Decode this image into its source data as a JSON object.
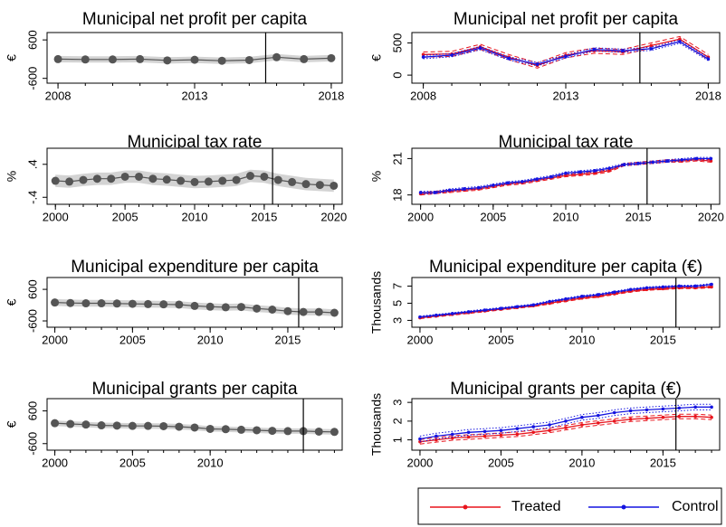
{
  "chart_data": [
    {
      "type": "line",
      "title": "Municipal net profit per capita",
      "y_label": "€",
      "x": [
        2008,
        2009,
        2010,
        2011,
        2012,
        2013,
        2014,
        2015,
        2016,
        2017,
        2018
      ],
      "xlim": [
        2007.6,
        2018.4
      ],
      "xticks": [
        2008,
        2013,
        2018
      ],
      "ylim": [
        -750,
        830
      ],
      "yticks": [
        -600,
        600
      ],
      "reference_line": 2015.6,
      "band_color": "#d3d3d3",
      "series": [
        {
          "color": "#555555",
          "values": [
            0,
            -10,
            -10,
            0,
            -40,
            -20,
            -50,
            -30,
            60,
            0,
            30
          ],
          "lower": [
            -100,
            -110,
            -110,
            -100,
            -140,
            -120,
            -150,
            -130,
            -40,
            -100,
            -70
          ],
          "upper": [
            100,
            90,
            90,
            100,
            60,
            80,
            50,
            70,
            160,
            100,
            130
          ]
        }
      ]
    },
    {
      "type": "line",
      "title": "Municipal net profit per capita",
      "y_label": "€",
      "x": [
        2008,
        2009,
        2010,
        2011,
        2012,
        2013,
        2014,
        2015,
        2016,
        2017,
        2018
      ],
      "xlim": [
        2007.6,
        2018.4
      ],
      "xticks": [
        2008,
        2013,
        2018
      ],
      "ylim": [
        -125,
        662
      ],
      "yticks": [
        0,
        500
      ],
      "reference_line": 2015.6,
      "series": [
        {
          "color": "#e8141c",
          "ci_style": "dashed",
          "values": [
            320,
            330,
            440,
            280,
            150,
            310,
            380,
            360,
            460,
            560,
            280
          ],
          "lower": [
            280,
            290,
            400,
            240,
            110,
            270,
            340,
            320,
            420,
            520,
            240
          ],
          "upper": [
            360,
            370,
            480,
            320,
            190,
            350,
            420,
            400,
            500,
            600,
            320
          ]
        },
        {
          "color": "#1414e0",
          "ci_style": "dotted",
          "values": [
            280,
            310,
            420,
            260,
            170,
            290,
            400,
            380,
            410,
            520,
            250
          ],
          "lower": [
            255,
            285,
            395,
            235,
            145,
            265,
            375,
            355,
            385,
            495,
            225
          ],
          "upper": [
            305,
            335,
            445,
            285,
            195,
            315,
            425,
            405,
            435,
            545,
            275
          ]
        }
      ]
    },
    {
      "type": "line",
      "title": "Municipal tax rate",
      "y_label": "%",
      "x": [
        2000,
        2001,
        2002,
        2003,
        2004,
        2005,
        2006,
        2007,
        2008,
        2009,
        2010,
        2011,
        2012,
        2013,
        2014,
        2015,
        2016,
        2017,
        2018,
        2019,
        2020
      ],
      "xlim": [
        1999.4,
        2020.6
      ],
      "xticks": [
        2000,
        2005,
        2010,
        2015,
        2020
      ],
      "ylim": [
        -0.57,
        0.79
      ],
      "yticks": [
        {
          "value": -0.4,
          "label": "-.4"
        },
        {
          "value": 0.4,
          "label": ".4"
        }
      ],
      "reference_line": 2015.6,
      "band_color": "#d3d3d3",
      "series": [
        {
          "color": "#555555",
          "values": [
            0,
            -0.02,
            0.02,
            0.05,
            0.05,
            0.1,
            0.1,
            0.05,
            0.03,
            0,
            -0.03,
            -0.02,
            0,
            0.02,
            0.12,
            0.1,
            0.02,
            -0.03,
            -0.08,
            -0.1,
            -0.12
          ],
          "lower": [
            -0.15,
            -0.17,
            -0.13,
            -0.1,
            -0.1,
            -0.05,
            -0.05,
            -0.1,
            -0.12,
            -0.15,
            -0.18,
            -0.17,
            -0.15,
            -0.13,
            -0.03,
            -0.05,
            -0.13,
            -0.18,
            -0.23,
            -0.25,
            -0.27
          ],
          "upper": [
            0.15,
            0.13,
            0.17,
            0.2,
            0.2,
            0.25,
            0.25,
            0.2,
            0.18,
            0.15,
            0.12,
            0.13,
            0.15,
            0.17,
            0.27,
            0.25,
            0.17,
            0.12,
            0.07,
            0.05,
            0.03
          ]
        }
      ]
    },
    {
      "type": "line",
      "title": "Municipal tax rate",
      "y_label": "%",
      "x": [
        2000,
        2001,
        2002,
        2003,
        2004,
        2005,
        2006,
        2007,
        2008,
        2009,
        2010,
        2011,
        2012,
        2013,
        2014,
        2015,
        2016,
        2017,
        2018,
        2019,
        2020
      ],
      "xlim": [
        1999.4,
        2020.6
      ],
      "xticks": [
        2000,
        2005,
        2010,
        2015,
        2020
      ],
      "ylim": [
        17.23,
        21.85
      ],
      "yticks": [
        18,
        21
      ],
      "reference_line": 2015.6,
      "series": [
        {
          "color": "#e8141c",
          "ci_style": "dashed",
          "values": [
            18.1,
            18.2,
            18.3,
            18.4,
            18.5,
            18.7,
            18.9,
            19.0,
            19.2,
            19.4,
            19.6,
            19.7,
            19.8,
            20.0,
            20.5,
            20.6,
            20.7,
            20.8,
            20.8,
            20.9,
            20.8
          ],
          "lower": [
            18.0,
            18.1,
            18.2,
            18.3,
            18.4,
            18.6,
            18.8,
            18.9,
            19.1,
            19.3,
            19.5,
            19.6,
            19.7,
            19.9,
            20.4,
            20.5,
            20.6,
            20.7,
            20.7,
            20.8,
            20.7
          ],
          "upper": [
            18.2,
            18.3,
            18.4,
            18.5,
            18.6,
            18.8,
            19.0,
            19.1,
            19.3,
            19.5,
            19.7,
            19.8,
            19.9,
            20.1,
            20.6,
            20.7,
            20.8,
            20.9,
            20.9,
            21.0,
            20.9
          ]
        },
        {
          "color": "#1414e0",
          "ci_style": "dotted",
          "values": [
            18.2,
            18.2,
            18.4,
            18.5,
            18.6,
            18.8,
            19.0,
            19.1,
            19.3,
            19.5,
            19.8,
            19.9,
            20.0,
            20.2,
            20.5,
            20.6,
            20.7,
            20.8,
            20.9,
            21.0,
            21.0
          ],
          "lower": [
            18.1,
            18.1,
            18.3,
            18.4,
            18.5,
            18.7,
            18.9,
            19.0,
            19.2,
            19.4,
            19.7,
            19.8,
            19.9,
            20.1,
            20.4,
            20.5,
            20.6,
            20.7,
            20.8,
            20.9,
            20.9
          ],
          "upper": [
            18.3,
            18.3,
            18.5,
            18.6,
            18.7,
            18.9,
            19.1,
            19.2,
            19.4,
            19.6,
            19.9,
            20.0,
            20.1,
            20.3,
            20.6,
            20.7,
            20.8,
            20.9,
            21.0,
            21.1,
            21.1
          ]
        }
      ]
    },
    {
      "type": "line",
      "title": "Municipal expenditure per capita",
      "y_label": "€",
      "x": [
        2000,
        2001,
        2002,
        2003,
        2004,
        2005,
        2006,
        2007,
        2008,
        2009,
        2010,
        2011,
        2012,
        2013,
        2014,
        2015,
        2016,
        2017,
        2018
      ],
      "xlim": [
        1999.5,
        2018.5
      ],
      "xticks": [
        2000,
        2005,
        2010,
        2015
      ],
      "ylim": [
        -840,
        1050
      ],
      "yticks": [
        -600,
        600
      ],
      "reference_line": 2015.7,
      "band_color": "#d3d3d3",
      "series": [
        {
          "color": "#555555",
          "values": [
            100,
            80,
            70,
            70,
            60,
            50,
            40,
            30,
            20,
            -30,
            -60,
            -80,
            -70,
            -130,
            -170,
            -230,
            -260,
            -260,
            -290
          ],
          "lower": [
            -30,
            -50,
            -60,
            -60,
            -70,
            -80,
            -90,
            -100,
            -110,
            -160,
            -190,
            -210,
            -200,
            -260,
            -300,
            -360,
            -390,
            -390,
            -420
          ],
          "upper": [
            230,
            210,
            200,
            200,
            190,
            180,
            170,
            160,
            150,
            100,
            70,
            50,
            60,
            0,
            -40,
            -100,
            -130,
            -130,
            -160
          ]
        }
      ]
    },
    {
      "type": "line",
      "title": "Municipal expenditure per capita (€)",
      "y_label": "Thousands",
      "x": [
        2000,
        2001,
        2002,
        2003,
        2004,
        2005,
        2006,
        2007,
        2008,
        2009,
        2010,
        2011,
        2012,
        2013,
        2014,
        2015,
        2016,
        2017,
        2018
      ],
      "xlim": [
        1999.5,
        2018.5
      ],
      "xticks": [
        2000,
        2005,
        2010,
        2015
      ],
      "ylim": [
        2.2,
        8.0
      ],
      "yticks": [
        3,
        5,
        7
      ],
      "reference_line": 2015.8,
      "series": [
        {
          "color": "#e8141c",
          "ci_style": "dashed",
          "values": [
            3.3,
            3.5,
            3.7,
            3.9,
            4.1,
            4.3,
            4.5,
            4.7,
            5.0,
            5.3,
            5.6,
            5.8,
            6.1,
            6.4,
            6.6,
            6.7,
            6.8,
            6.8,
            6.9
          ],
          "lower": [
            3.2,
            3.4,
            3.6,
            3.8,
            4.0,
            4.2,
            4.4,
            4.6,
            4.9,
            5.2,
            5.5,
            5.7,
            6.0,
            6.3,
            6.5,
            6.6,
            6.7,
            6.7,
            6.8
          ],
          "upper": [
            3.4,
            3.6,
            3.8,
            4.0,
            4.2,
            4.4,
            4.6,
            4.8,
            5.1,
            5.4,
            5.7,
            5.9,
            6.2,
            6.5,
            6.7,
            6.8,
            6.9,
            6.9,
            7.0
          ]
        },
        {
          "color": "#1414e0",
          "ci_style": "dotted",
          "values": [
            3.4,
            3.6,
            3.8,
            4.0,
            4.2,
            4.4,
            4.6,
            4.8,
            5.2,
            5.5,
            5.8,
            6.0,
            6.3,
            6.6,
            6.8,
            6.9,
            7.0,
            7.0,
            7.2
          ],
          "lower": [
            3.3,
            3.5,
            3.7,
            3.9,
            4.1,
            4.3,
            4.5,
            4.7,
            5.1,
            5.4,
            5.7,
            5.9,
            6.2,
            6.5,
            6.7,
            6.8,
            6.9,
            6.9,
            7.1
          ],
          "upper": [
            3.5,
            3.7,
            3.9,
            4.1,
            4.3,
            4.5,
            4.7,
            4.9,
            5.3,
            5.6,
            5.9,
            6.1,
            6.4,
            6.7,
            6.9,
            7.0,
            7.1,
            7.1,
            7.3
          ]
        }
      ]
    },
    {
      "type": "line",
      "title": "Municipal grants per capita",
      "y_label": "€",
      "x": [
        2000,
        2001,
        2002,
        2003,
        2004,
        2005,
        2006,
        2007,
        2008,
        2009,
        2010,
        2011,
        2012,
        2013,
        2014,
        2015,
        2016,
        2017,
        2018
      ],
      "xlim": [
        1999.5,
        2018.5
      ],
      "xticks": [
        2000,
        2005,
        2010
      ],
      "ylim": [
        -840,
        1050
      ],
      "yticks": [
        -600,
        600
      ],
      "reference_line": 2016,
      "band_color": "#d3d3d3",
      "series": [
        {
          "color": "#555555",
          "values": [
            150,
            120,
            100,
            70,
            60,
            50,
            50,
            40,
            20,
            -10,
            -60,
            -70,
            -90,
            -110,
            -130,
            -140,
            -140,
            -160,
            -170
          ],
          "lower": [
            50,
            20,
            0,
            -30,
            -40,
            -50,
            -50,
            -60,
            -80,
            -110,
            -160,
            -170,
            -190,
            -210,
            -230,
            -240,
            -240,
            -260,
            -270
          ],
          "upper": [
            250,
            220,
            200,
            170,
            160,
            150,
            150,
            140,
            120,
            90,
            40,
            30,
            10,
            -10,
            -30,
            -40,
            -40,
            -60,
            -70
          ]
        }
      ]
    },
    {
      "type": "line",
      "title": "Municipal grants per capita (€)",
      "y_label": "Thousands",
      "x": [
        2000,
        2001,
        2002,
        2003,
        2004,
        2005,
        2006,
        2007,
        2008,
        2009,
        2010,
        2011,
        2012,
        2013,
        2014,
        2015,
        2016,
        2017,
        2018
      ],
      "xlim": [
        1999.5,
        2018.5
      ],
      "xticks": [
        2000,
        2005,
        2010,
        2015
      ],
      "ylim": [
        0.45,
        3.2
      ],
      "yticks": [
        1,
        2,
        3
      ],
      "reference_line": 2015.8,
      "series": [
        {
          "color": "#e8141c",
          "ci_style": "dashed",
          "values": [
            0.9,
            1.0,
            1.1,
            1.15,
            1.2,
            1.25,
            1.3,
            1.4,
            1.5,
            1.65,
            1.8,
            1.9,
            2.0,
            2.1,
            2.15,
            2.2,
            2.25,
            2.25,
            2.2
          ],
          "lower": [
            0.78,
            0.88,
            0.98,
            1.03,
            1.08,
            1.13,
            1.18,
            1.28,
            1.38,
            1.53,
            1.68,
            1.78,
            1.88,
            1.98,
            2.03,
            2.08,
            2.13,
            2.13,
            2.08
          ],
          "upper": [
            1.02,
            1.12,
            1.22,
            1.27,
            1.32,
            1.37,
            1.42,
            1.52,
            1.62,
            1.77,
            1.92,
            2.02,
            2.12,
            2.22,
            2.27,
            2.32,
            2.37,
            2.37,
            2.32
          ]
        },
        {
          "color": "#1414e0",
          "ci_style": "dotted",
          "values": [
            1.05,
            1.2,
            1.3,
            1.4,
            1.45,
            1.5,
            1.6,
            1.7,
            1.8,
            2.0,
            2.2,
            2.3,
            2.45,
            2.55,
            2.6,
            2.65,
            2.7,
            2.75,
            2.75
          ],
          "lower": [
            0.9,
            1.05,
            1.15,
            1.25,
            1.3,
            1.35,
            1.45,
            1.55,
            1.65,
            1.85,
            2.05,
            2.15,
            2.3,
            2.4,
            2.45,
            2.5,
            2.55,
            2.6,
            2.6
          ],
          "upper": [
            1.2,
            1.35,
            1.45,
            1.55,
            1.6,
            1.65,
            1.75,
            1.85,
            1.95,
            2.15,
            2.35,
            2.45,
            2.6,
            2.7,
            2.75,
            2.8,
            2.85,
            2.9,
            2.9
          ]
        }
      ]
    }
  ],
  "legend": {
    "entries": [
      {
        "name": "Treated",
        "color": "#e8141c"
      },
      {
        "name": "Control",
        "color": "#1414e0"
      }
    ]
  }
}
